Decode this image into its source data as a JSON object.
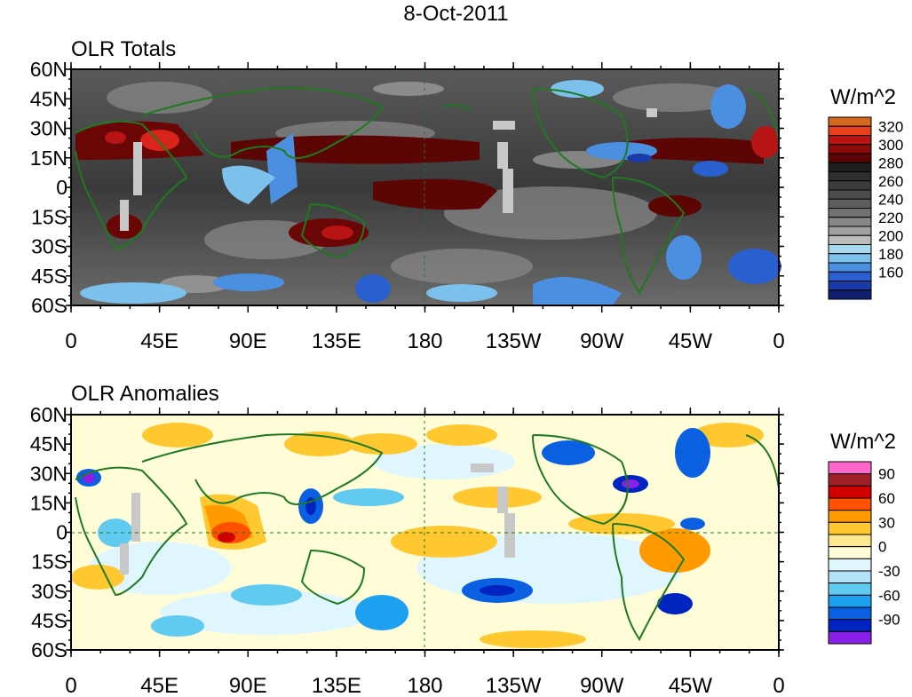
{
  "title": "8-Oct-2011",
  "panels": [
    {
      "title": "OLR Totals",
      "colorbar_title": "W/m^2",
      "colorbar_labels": [
        "320",
        "300",
        "280",
        "260",
        "240",
        "220",
        "200",
        "180",
        "160"
      ],
      "colorbar_colors": [
        "#d2691e",
        "#e8401c",
        "#b81414",
        "#8c0a0a",
        "#5c0505",
        "#1e1e1e",
        "#2e2e2e",
        "#3c3c3c",
        "#4c4c4c",
        "#5e5e5e",
        "#727272",
        "#888888",
        "#a0a0a0",
        "#bcbcbc",
        "#a8d8ee",
        "#7cc0ec",
        "#4b8fe0",
        "#2a5fd0",
        "#1a3aa8",
        "#101e70"
      ]
    },
    {
      "title": "OLR Anomalies",
      "colorbar_title": "W/m^2",
      "colorbar_labels": [
        "90",
        "60",
        "30",
        "0",
        "-30",
        "-60",
        "-90"
      ],
      "colorbar_colors": [
        "#ff66cc",
        "#a0202a",
        "#d00000",
        "#ff5000",
        "#ff9a00",
        "#ffc830",
        "#ffe890",
        "#fffdd8",
        "#e0f6ff",
        "#b4e2f6",
        "#60caf0",
        "#1ea0f0",
        "#0a60e0",
        "#0024c0",
        "#8a20e8"
      ]
    }
  ],
  "lat_labels": [
    "60N",
    "45N",
    "30N",
    "15N",
    "0",
    "15S",
    "30S",
    "45S",
    "60S"
  ],
  "lon_labels": [
    "0",
    "45E",
    "90E",
    "135E",
    "180",
    "135W",
    "90W",
    "45W",
    "0"
  ]
}
